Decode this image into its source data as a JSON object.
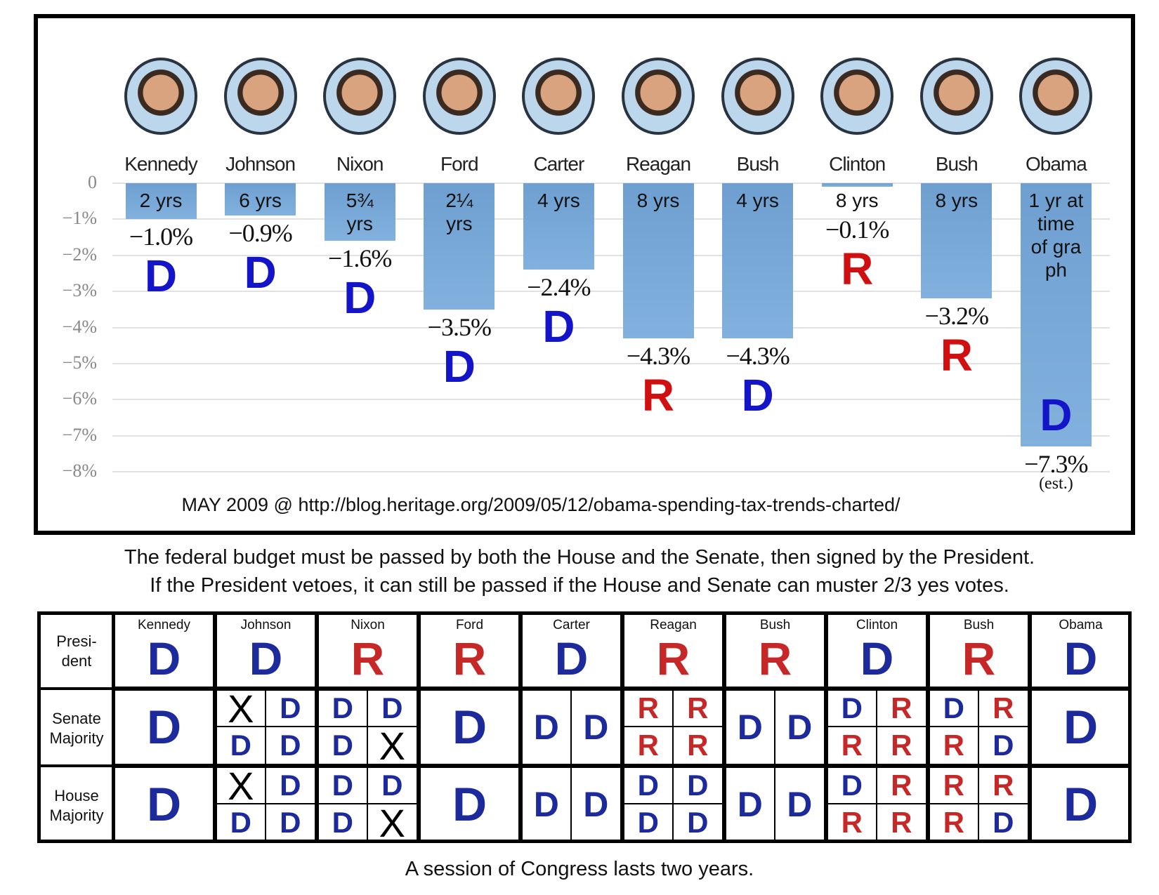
{
  "chart_data": {
    "type": "bar",
    "categories": [
      "Kennedy",
      "Johnson",
      "Nixon",
      "Ford",
      "Carter",
      "Reagan",
      "Bush",
      "Clinton",
      "Bush",
      "Obama"
    ],
    "values": [
      -1.0,
      -0.9,
      -1.6,
      -3.5,
      -2.4,
      -4.3,
      -4.3,
      -0.1,
      -3.2,
      -7.3
    ],
    "value_labels": [
      "−1.0%",
      "−0.9%",
      "−1.6%",
      "−3.5%",
      "−2.4%",
      "−4.3%",
      "−4.3%",
      "−0.1%",
      "−3.2%",
      "−7.3%"
    ],
    "value_notes": [
      null,
      null,
      null,
      null,
      null,
      null,
      null,
      null,
      null,
      "(est.)"
    ],
    "terms": [
      "2 yrs",
      "6 yrs",
      "5¾ yrs",
      "2¼ yrs",
      "4 yrs",
      "8 yrs",
      "4 yrs",
      "8 yrs",
      "8 yrs",
      "1 yr at time of gra ph"
    ],
    "parties": [
      "D",
      "D",
      "D",
      "D",
      "D",
      "R",
      "D",
      "R",
      "R",
      "D"
    ],
    "color": "#82b1de",
    "party_colors": {
      "D": "#1414c8",
      "R": "#d01010"
    },
    "ylim": [
      -8,
      0
    ],
    "yticks": [
      0,
      {
        "value": -1,
        "label": "−1%"
      },
      {
        "value": -2,
        "label": "−2%"
      },
      {
        "value": -3,
        "label": "−3%"
      },
      {
        "value": -4,
        "label": "−4%"
      },
      {
        "value": -5,
        "label": "−5%"
      },
      {
        "value": -6,
        "label": "−6%"
      },
      {
        "value": -7,
        "label": "−7%"
      },
      {
        "value": -8,
        "label": "−8%"
      }
    ],
    "grid": true,
    "source": "MAY 2009 @ http://blog.heritage.org/2009/05/12/obama-spending-tax-trends-charted/"
  },
  "caption": [
    "The federal budget must be passed by both the House and the Senate, then signed by the President.",
    "If the President vetoes, it can still be passed if the House and Senate can muster 2/3 yes votes."
  ],
  "table": {
    "party_colors": {
      "D": "#1c2a9c",
      "R": "#c62828",
      "X": "#000000"
    },
    "row_labels": [
      [
        "Presi-",
        "dent"
      ],
      [
        "Senate",
        "Majority"
      ],
      [
        "House",
        "Majority"
      ]
    ],
    "columns": [
      {
        "name": "Kennedy",
        "president": "D",
        "senate": [
          [
            "D"
          ]
        ],
        "house": [
          [
            "D"
          ]
        ]
      },
      {
        "name": "Johnson",
        "president": "D",
        "senate": [
          [
            "X",
            "D"
          ],
          [
            "D",
            "D"
          ]
        ],
        "house": [
          [
            "X",
            "D"
          ],
          [
            "D",
            "D"
          ]
        ]
      },
      {
        "name": "Nixon",
        "president": "R",
        "senate": [
          [
            "D",
            "D"
          ],
          [
            "D",
            "X"
          ]
        ],
        "house": [
          [
            "D",
            "D"
          ],
          [
            "D",
            "X"
          ]
        ]
      },
      {
        "name": "Ford",
        "president": "R",
        "senate": [
          [
            "D"
          ]
        ],
        "house": [
          [
            "D"
          ]
        ]
      },
      {
        "name": "Carter",
        "president": "D",
        "senate": [
          [
            "D",
            "D"
          ]
        ],
        "house": [
          [
            "D",
            "D"
          ]
        ]
      },
      {
        "name": "Reagan",
        "president": "R",
        "senate": [
          [
            "R",
            "R"
          ],
          [
            "R",
            "R"
          ]
        ],
        "house": [
          [
            "D",
            "D"
          ],
          [
            "D",
            "D"
          ]
        ]
      },
      {
        "name": "Bush",
        "president": "R",
        "senate": [
          [
            "D",
            "D"
          ]
        ],
        "house": [
          [
            "D",
            "D"
          ]
        ]
      },
      {
        "name": "Clinton",
        "president": "D",
        "senate": [
          [
            "D",
            "R"
          ],
          [
            "R",
            "R"
          ]
        ],
        "house": [
          [
            "D",
            "R"
          ],
          [
            "R",
            "R"
          ]
        ]
      },
      {
        "name": "Bush",
        "president": "R",
        "senate": [
          [
            "D",
            "R"
          ],
          [
            "R",
            "D"
          ]
        ],
        "house": [
          [
            "R",
            "R"
          ],
          [
            "R",
            "D"
          ]
        ]
      },
      {
        "name": "Obama",
        "president": "D",
        "senate": [
          [
            "D"
          ]
        ],
        "house": [
          [
            "D"
          ]
        ]
      }
    ]
  },
  "footer": "A session of Congress lasts two years."
}
